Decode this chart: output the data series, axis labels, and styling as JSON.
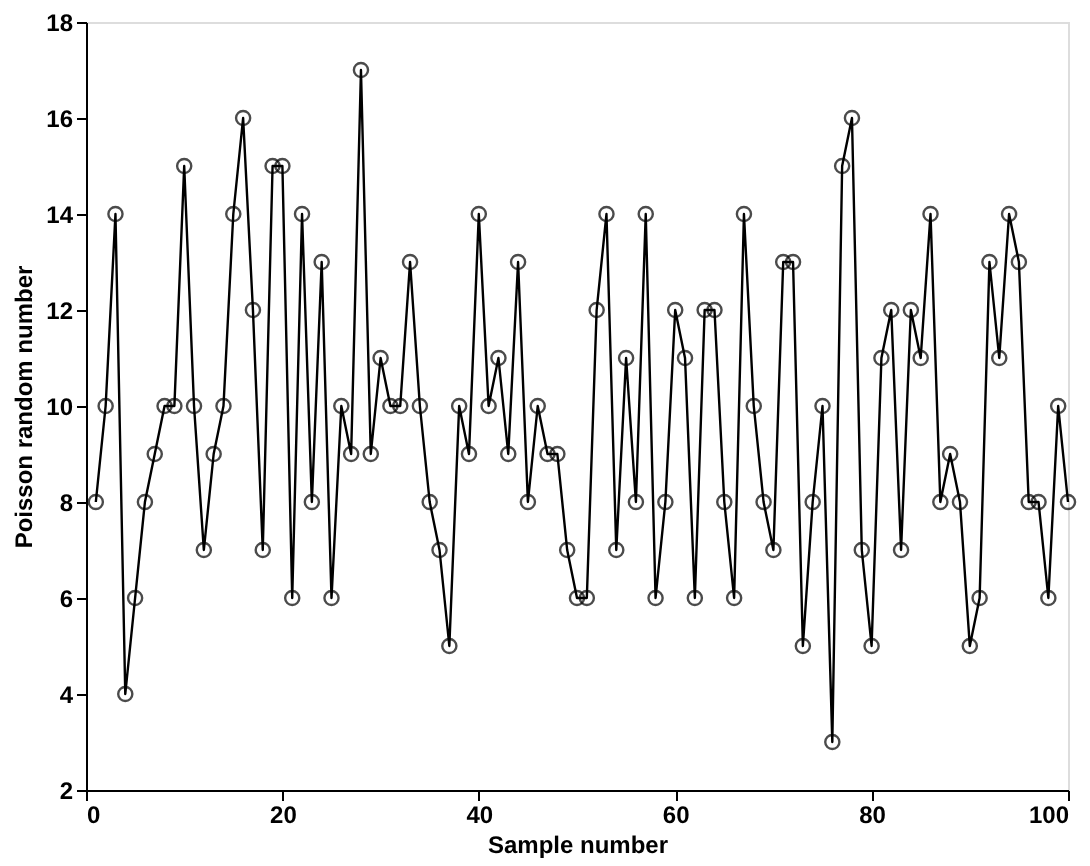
{
  "chart_data": {
    "type": "line",
    "xlabel": "Sample number",
    "ylabel": "Poisson random number",
    "x": [
      1,
      2,
      3,
      4,
      5,
      6,
      7,
      8,
      9,
      10,
      11,
      12,
      13,
      14,
      15,
      16,
      17,
      18,
      19,
      20,
      21,
      22,
      23,
      24,
      25,
      26,
      27,
      28,
      29,
      30,
      31,
      32,
      33,
      34,
      35,
      36,
      37,
      38,
      39,
      40,
      41,
      42,
      43,
      44,
      45,
      46,
      47,
      48,
      49,
      50,
      51,
      52,
      53,
      54,
      55,
      56,
      57,
      58,
      59,
      60,
      61,
      62,
      63,
      64,
      65,
      66,
      67,
      68,
      69,
      70,
      71,
      72,
      73,
      74,
      75,
      76,
      77,
      78,
      79,
      80,
      81,
      82,
      83,
      84,
      85,
      86,
      87,
      88,
      89,
      90,
      91,
      92,
      93,
      94,
      95,
      96,
      97,
      98,
      99,
      100
    ],
    "series": [
      {
        "color": "#000000",
        "values": [
          8,
          10,
          14,
          4,
          6,
          8,
          9,
          10,
          10,
          15,
          10,
          7,
          9,
          10,
          14,
          16,
          12,
          7,
          15,
          15,
          6,
          14,
          8,
          13,
          6,
          10,
          9,
          17,
          9,
          11,
          10,
          10,
          13,
          10,
          8,
          7,
          5,
          10,
          9,
          14,
          10,
          11,
          9,
          13,
          8,
          10,
          9,
          9,
          7,
          6,
          6,
          12,
          14,
          7,
          11,
          8,
          14,
          6,
          8,
          12,
          11,
          6,
          12,
          12,
          8,
          6,
          14,
          10,
          8,
          7,
          13,
          13,
          5,
          8,
          10,
          3,
          15,
          16,
          7,
          5,
          11,
          12,
          7,
          12,
          11,
          14,
          8,
          9,
          8,
          5,
          6,
          13,
          11,
          14,
          13,
          8,
          8,
          6,
          10,
          8
        ]
      }
    ],
    "xlim": [
      0,
      100
    ],
    "xticks": [
      0,
      20,
      40,
      60,
      80,
      100
    ],
    "ylim": [
      2,
      18
    ],
    "yticks": [
      2,
      4,
      6,
      8,
      10,
      12,
      14,
      16,
      18
    ],
    "marker": "circle",
    "line_style": "solid",
    "grid": false,
    "legend": false
  }
}
